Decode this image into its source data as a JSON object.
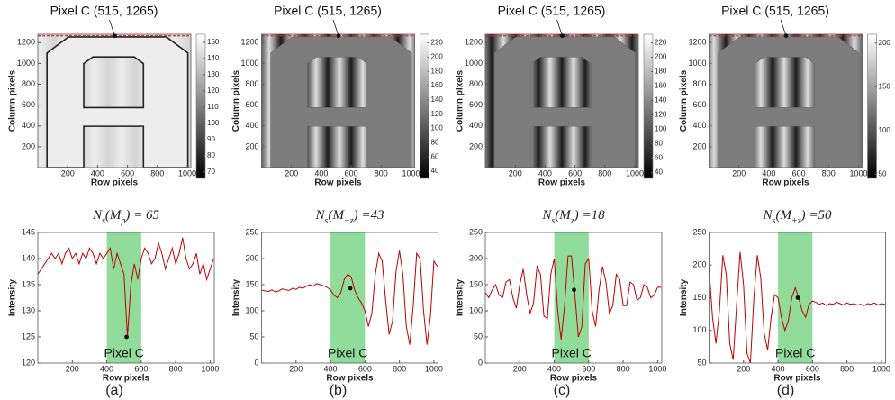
{
  "chart_data": [
    {
      "type": "image",
      "annotation": "Pixel C (515, 1265)",
      "point": [
        515,
        1265
      ],
      "xlabel": "Row pixels",
      "ylabel": "Column pixels",
      "xlim": [
        0,
        1024
      ],
      "ylim": [
        0,
        1280
      ],
      "xticks": [
        200,
        400,
        600,
        800,
        1000
      ],
      "yticks": [
        200,
        400,
        600,
        800,
        1000,
        1200
      ],
      "clim": [
        66,
        155
      ],
      "cticks": [
        70,
        80,
        90,
        100,
        110,
        120,
        130,
        140,
        150
      ]
    },
    {
      "type": "line",
      "title_parts": [
        "N",
        "s",
        "(M",
        "p",
        ") = 65"
      ],
      "x": [
        0,
        20,
        40,
        60,
        80,
        100,
        120,
        140,
        160,
        180,
        200,
        220,
        240,
        260,
        280,
        300,
        320,
        340,
        360,
        380,
        400,
        420,
        440,
        460,
        480,
        500,
        520,
        540,
        560,
        580,
        600,
        620,
        640,
        660,
        680,
        700,
        720,
        740,
        760,
        780,
        800,
        820,
        840,
        860,
        880,
        900,
        920,
        940,
        960,
        980,
        1000,
        1020
      ],
      "series": [
        {
          "color": "#c00000",
          "values": [
            137,
            138,
            139,
            140,
            141,
            140,
            141,
            139,
            141,
            142,
            140,
            141,
            139,
            141,
            140,
            142,
            141,
            139,
            141,
            140,
            141,
            142,
            138,
            141,
            139,
            137,
            125,
            135,
            139,
            136,
            140,
            142,
            141,
            139,
            140,
            143,
            141,
            138,
            140,
            142,
            139,
            141,
            144,
            140,
            138,
            139,
            141,
            137,
            139,
            136,
            138,
            140
          ]
        }
      ],
      "highlight": [
        400,
        600
      ],
      "highlight_color": "#7fd68a",
      "annotation": "Pixel C",
      "point": [
        515,
        125
      ],
      "xlabel": "Row pixels",
      "ylabel": "Intensity",
      "xlim": [
        0,
        1024
      ],
      "ylim": [
        120,
        145
      ],
      "xticks": [
        200,
        400,
        600,
        800,
        1000
      ],
      "yticks": [
        120,
        125,
        130,
        135,
        140,
        145
      ],
      "panel_label": "(a)"
    },
    {
      "type": "image",
      "annotation": "Pixel C (515, 1265)",
      "point": [
        515,
        1265
      ],
      "xlabel": "Row pixels",
      "ylabel": "Column pixels",
      "xlim": [
        0,
        1024
      ],
      "ylim": [
        0,
        1280
      ],
      "xticks": [
        200,
        400,
        600,
        800,
        1000
      ],
      "yticks": [
        200,
        400,
        600,
        800,
        1000,
        1200
      ],
      "clim": [
        30,
        232
      ],
      "cticks": [
        40,
        60,
        80,
        100,
        120,
        140,
        160,
        180,
        200,
        220
      ]
    },
    {
      "type": "line",
      "title_parts": [
        "N",
        "s",
        "(M",
        "−z",
        ") =43"
      ],
      "x": [
        0,
        20,
        40,
        60,
        80,
        100,
        120,
        140,
        160,
        180,
        200,
        220,
        240,
        260,
        280,
        300,
        320,
        340,
        360,
        380,
        400,
        420,
        440,
        460,
        480,
        500,
        520,
        540,
        560,
        580,
        600,
        620,
        640,
        660,
        680,
        700,
        720,
        740,
        760,
        780,
        800,
        820,
        840,
        860,
        880,
        900,
        920,
        940,
        960,
        980,
        1000,
        1020
      ],
      "series": [
        {
          "color": "#c00000",
          "values": [
            140,
            138,
            137,
            140,
            136,
            138,
            142,
            140,
            139,
            143,
            141,
            145,
            143,
            147,
            150,
            147,
            152,
            150,
            148,
            145,
            140,
            130,
            125,
            135,
            160,
            170,
            165,
            140,
            125,
            115,
            100,
            70,
            95,
            170,
            210,
            195,
            120,
            55,
            80,
            175,
            215,
            170,
            70,
            35,
            110,
            210,
            200,
            100,
            35,
            90,
            195,
            185
          ]
        }
      ],
      "highlight": [
        400,
        600
      ],
      "highlight_color": "#7fd68a",
      "annotation": "Pixel C",
      "point": [
        515,
        143
      ],
      "xlabel": "Row pixels",
      "ylabel": "Intensity",
      "xlim": [
        0,
        1024
      ],
      "ylim": [
        0,
        250
      ],
      "xticks": [
        200,
        400,
        600,
        800,
        1000
      ],
      "yticks": [
        0,
        50,
        100,
        150,
        200,
        250
      ],
      "panel_label": "(b)"
    },
    {
      "type": "image",
      "annotation": "Pixel C (515, 1265)",
      "point": [
        515,
        1265
      ],
      "xlabel": "Row pixels",
      "ylabel": "Column pixels",
      "xlim": [
        0,
        1024
      ],
      "ylim": [
        0,
        1280
      ],
      "xticks": [
        200,
        400,
        600,
        800,
        1000
      ],
      "yticks": [
        200,
        400,
        600,
        800,
        1000,
        1200
      ],
      "clim": [
        32,
        232
      ],
      "cticks": [
        40,
        60,
        80,
        100,
        120,
        140,
        160,
        180,
        200,
        220
      ]
    },
    {
      "type": "line",
      "title_parts": [
        "N",
        "s",
        "(M",
        "z",
        ") =18"
      ],
      "x": [
        0,
        20,
        40,
        60,
        80,
        100,
        120,
        140,
        160,
        180,
        200,
        220,
        240,
        260,
        280,
        300,
        320,
        340,
        360,
        380,
        400,
        420,
        440,
        460,
        480,
        500,
        520,
        540,
        560,
        580,
        600,
        620,
        640,
        660,
        680,
        700,
        720,
        740,
        760,
        780,
        800,
        820,
        840,
        860,
        880,
        900,
        920,
        940,
        960,
        980,
        1000,
        1020
      ],
      "series": [
        {
          "color": "#c00000",
          "values": [
            135,
            125,
            140,
            150,
            130,
            125,
            155,
            160,
            125,
            105,
            150,
            180,
            130,
            95,
            115,
            185,
            170,
            90,
            85,
            170,
            200,
            100,
            45,
            110,
            205,
            205,
            130,
            50,
            70,
            190,
            200,
            100,
            70,
            140,
            185,
            155,
            95,
            110,
            170,
            160,
            110,
            110,
            155,
            150,
            120,
            125,
            150,
            145,
            125,
            130,
            145,
            145
          ]
        }
      ],
      "highlight": [
        400,
        600
      ],
      "highlight_color": "#7fd68a",
      "annotation": "Pixel C",
      "point": [
        515,
        140
      ],
      "xlabel": "Row pixels",
      "ylabel": "Intensity",
      "xlim": [
        0,
        1024
      ],
      "ylim": [
        0,
        250
      ],
      "xticks": [
        200,
        400,
        600,
        800,
        1000
      ],
      "yticks": [
        0,
        50,
        100,
        150,
        200,
        250
      ],
      "panel_label": "(c)"
    },
    {
      "type": "image",
      "annotation": "Pixel C (515, 1265)",
      "point": [
        515,
        1265
      ],
      "xlabel": "Row pixels",
      "ylabel": "Column pixels",
      "xlim": [
        0,
        1024
      ],
      "ylim": [
        0,
        1280
      ],
      "xticks": [
        200,
        400,
        600,
        800,
        1000
      ],
      "yticks": [
        200,
        400,
        600,
        800,
        1000,
        1200
      ],
      "clim": [
        45,
        210
      ],
      "cticks": [
        50,
        100,
        150,
        200
      ]
    },
    {
      "type": "line",
      "title_parts": [
        "N",
        "s",
        "(M",
        "+z",
        ") =50"
      ],
      "x": [
        0,
        20,
        40,
        60,
        80,
        100,
        120,
        140,
        160,
        180,
        200,
        220,
        240,
        260,
        280,
        300,
        320,
        340,
        360,
        380,
        400,
        420,
        440,
        460,
        480,
        500,
        520,
        540,
        560,
        580,
        600,
        620,
        640,
        660,
        680,
        700,
        720,
        740,
        760,
        780,
        800,
        820,
        840,
        860,
        880,
        900,
        920,
        940,
        960,
        980,
        1000,
        1020
      ],
      "series": [
        {
          "color": "#c00000",
          "values": [
            195,
            120,
            80,
            130,
            215,
            185,
            80,
            55,
            140,
            220,
            170,
            65,
            50,
            150,
            215,
            180,
            95,
            70,
            120,
            155,
            150,
            120,
            100,
            115,
            150,
            165,
            150,
            130,
            120,
            140,
            145,
            143,
            140,
            142,
            138,
            141,
            140,
            143,
            141,
            139,
            142,
            140,
            141,
            139,
            140,
            138,
            141,
            140,
            142,
            139,
            141,
            140
          ]
        }
      ],
      "highlight": [
        400,
        600
      ],
      "highlight_color": "#7fd68a",
      "annotation": "Pixel C",
      "point": [
        515,
        150
      ],
      "xlabel": "Row pixels",
      "ylabel": "Intensity",
      "xlim": [
        0,
        1024
      ],
      "ylim": [
        50,
        250
      ],
      "xticks": [
        200,
        400,
        600,
        800,
        1000
      ],
      "yticks": [
        50,
        100,
        150,
        200,
        250
      ],
      "panel_label": "(d)"
    }
  ]
}
